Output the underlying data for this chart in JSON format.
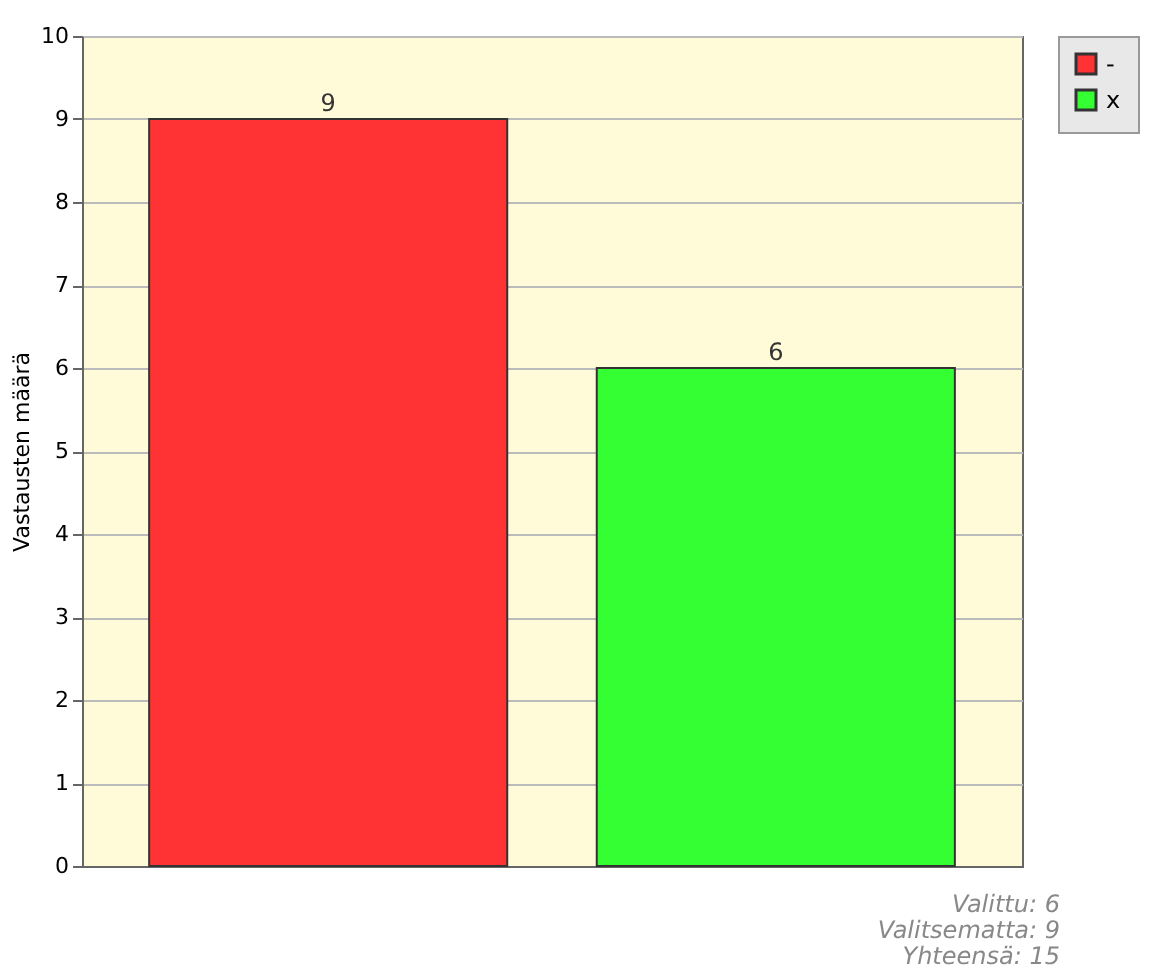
{
  "chart_data": {
    "type": "bar",
    "ylabel": "Vastausten määrä",
    "categories": [
      null,
      null
    ],
    "series": [
      {
        "name": "-",
        "color": "#ff3333",
        "values": [
          9,
          null
        ]
      },
      {
        "name": "x",
        "color": "#33ff33",
        "values": [
          null,
          6
        ]
      }
    ],
    "ylim": [
      0,
      10
    ],
    "yticks": [
      0,
      1,
      2,
      3,
      4,
      5,
      6,
      7,
      8,
      9,
      10
    ],
    "grid": "y",
    "legend": "top right",
    "data_labels": true,
    "annotations": [
      "Valittu: 6",
      "Valitsematta: 9",
      "Yhteensä: 15"
    ]
  }
}
